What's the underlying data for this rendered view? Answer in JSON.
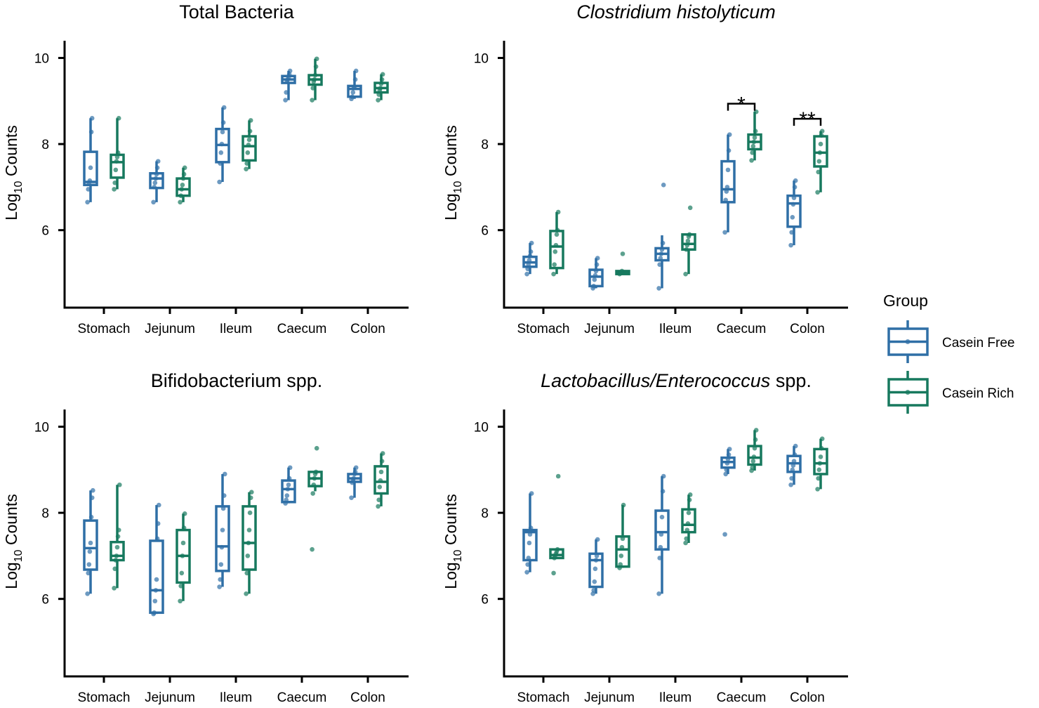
{
  "colors": {
    "casein_free": "#2f6fa6",
    "casein_rich": "#17795e"
  },
  "legend": {
    "title": "Group",
    "items": [
      {
        "label": "Casein Free",
        "color": "#2f6fa6"
      },
      {
        "label": "Casein Rich",
        "color": "#17795e"
      }
    ]
  },
  "chart_data": [
    {
      "type": "boxplot",
      "title": "Total Bacteria",
      "title_italic": false,
      "ylabel_base": "Log",
      "ylabel_sub": "10",
      "ylabel_rest": " Counts",
      "ylim": [
        4.2,
        10.4
      ],
      "yticks": [
        6,
        8,
        10
      ],
      "categories": [
        "Stomach",
        "Jejunum",
        "Ileum",
        "Caecum",
        "Colon"
      ],
      "series": [
        {
          "name": "Casein Free",
          "boxes": [
            {
              "min": 6.65,
              "q1": 7.05,
              "median": 7.12,
              "q3": 7.82,
              "max": 8.6,
              "points": [
                6.65,
                6.95,
                7.1,
                7.15,
                7.45,
                8.28,
                8.6
              ]
            },
            {
              "min": 6.65,
              "q1": 6.98,
              "median": 7.2,
              "q3": 7.32,
              "max": 7.6,
              "points": [
                6.65,
                7.0,
                7.1,
                7.2,
                7.3,
                7.45,
                7.6
              ]
            },
            {
              "min": 7.12,
              "q1": 7.58,
              "median": 7.98,
              "q3": 8.35,
              "max": 8.85,
              "points": [
                7.12,
                7.55,
                7.8,
                8.0,
                8.28,
                8.5,
                8.85
              ]
            },
            {
              "min": 9.02,
              "q1": 9.42,
              "median": 9.5,
              "q3": 9.58,
              "max": 9.7,
              "points": [
                9.02,
                9.2,
                9.45,
                9.5,
                9.55,
                9.62,
                9.7
              ]
            },
            {
              "min": 9.05,
              "q1": 9.1,
              "median": 9.28,
              "q3": 9.35,
              "max": 9.7,
              "points": [
                9.05,
                9.1,
                9.2,
                9.3,
                9.33,
                9.5,
                9.7
              ]
            }
          ]
        },
        {
          "name": "Casein Rich",
          "boxes": [
            {
              "min": 6.95,
              "q1": 7.22,
              "median": 7.58,
              "q3": 7.75,
              "max": 8.6,
              "points": [
                6.95,
                7.1,
                7.4,
                7.6,
                7.7,
                7.8,
                8.6
              ]
            },
            {
              "min": 6.65,
              "q1": 6.8,
              "median": 6.95,
              "q3": 7.2,
              "max": 7.45,
              "points": [
                6.65,
                6.8,
                6.95,
                7.05,
                7.2,
                7.3,
                7.45
              ]
            },
            {
              "min": 7.42,
              "q1": 7.62,
              "median": 7.95,
              "q3": 8.18,
              "max": 8.55,
              "points": [
                7.42,
                7.55,
                7.8,
                7.98,
                8.1,
                8.3,
                8.55
              ]
            },
            {
              "min": 9.02,
              "q1": 9.38,
              "median": 9.5,
              "q3": 9.6,
              "max": 9.98,
              "points": [
                9.02,
                9.3,
                9.45,
                9.5,
                9.6,
                9.8,
                9.98
              ]
            },
            {
              "min": 9.02,
              "q1": 9.2,
              "median": 9.3,
              "q3": 9.42,
              "max": 9.62,
              "points": [
                9.02,
                9.15,
                9.25,
                9.3,
                9.4,
                9.5,
                9.62
              ]
            }
          ]
        }
      ],
      "significance": []
    },
    {
      "type": "boxplot",
      "title": "Clostridium histolyticum",
      "title_italic": true,
      "ylabel_base": "Log",
      "ylabel_sub": "10",
      "ylabel_rest": " Counts",
      "ylim": [
        4.2,
        10.4
      ],
      "yticks": [
        6,
        8,
        10
      ],
      "categories": [
        "Stomach",
        "Jejunum",
        "Ileum",
        "Caecum",
        "Colon"
      ],
      "series": [
        {
          "name": "Casein Free",
          "boxes": [
            {
              "min": 4.98,
              "q1": 5.15,
              "median": 5.25,
              "q3": 5.38,
              "max": 5.7,
              "points": [
                4.98,
                5.1,
                5.2,
                5.3,
                5.4,
                5.5,
                5.7
              ]
            },
            {
              "min": 4.65,
              "q1": 4.7,
              "median": 4.92,
              "q3": 5.08,
              "max": 5.35,
              "points": [
                4.65,
                4.7,
                4.85,
                4.95,
                5.05,
                5.2,
                5.35
              ]
            },
            {
              "min": 4.65,
              "q1": 5.3,
              "median": 5.45,
              "q3": 5.58,
              "max": 5.88,
              "points": [
                4.65,
                5.2,
                5.35,
                5.45,
                5.55,
                5.7,
                7.05
              ]
            },
            {
              "min": 5.95,
              "q1": 6.65,
              "median": 6.95,
              "q3": 7.6,
              "max": 8.22,
              "points": [
                5.95,
                6.7,
                6.9,
                7.0,
                7.4,
                7.85,
                8.22
              ]
            },
            {
              "min": 5.65,
              "q1": 6.08,
              "median": 6.62,
              "q3": 6.8,
              "max": 7.15,
              "points": [
                5.65,
                5.95,
                6.3,
                6.6,
                6.75,
                7.0,
                7.15
              ]
            }
          ]
        },
        {
          "name": "Casein Rich",
          "boxes": [
            {
              "min": 4.98,
              "q1": 5.12,
              "median": 5.62,
              "q3": 5.98,
              "max": 6.42,
              "points": [
                4.98,
                5.2,
                5.5,
                5.65,
                5.9,
                6.0,
                6.42
              ]
            },
            {
              "min": 4.98,
              "q1": 4.98,
              "median": 5.02,
              "q3": 5.05,
              "max": 5.05,
              "points": [
                4.98,
                5.0,
                5.02,
                5.05,
                5.45
              ]
            },
            {
              "min": 4.98,
              "q1": 5.55,
              "median": 5.68,
              "q3": 5.9,
              "max": 5.9,
              "points": [
                4.98,
                5.55,
                5.65,
                5.75,
                5.85,
                5.9,
                6.52
              ]
            },
            {
              "min": 7.62,
              "q1": 7.88,
              "median": 8.05,
              "q3": 8.22,
              "max": 8.75,
              "points": [
                7.62,
                7.8,
                7.95,
                8.05,
                8.15,
                8.3,
                8.75
              ]
            },
            {
              "min": 6.88,
              "q1": 7.48,
              "median": 7.8,
              "q3": 8.18,
              "max": 8.3,
              "points": [
                6.88,
                7.35,
                7.6,
                7.8,
                8.0,
                8.2,
                8.3
              ]
            }
          ]
        }
      ],
      "significance": [
        {
          "category": "Caecum",
          "label": "*",
          "y": 8.35
        },
        {
          "category": "Colon",
          "label": "**",
          "y": 8.0
        }
      ]
    },
    {
      "type": "boxplot",
      "title": "Bifidobacterium spp.",
      "title_italic": false,
      "ylabel_base": "Log",
      "ylabel_sub": "10",
      "ylabel_rest": " Counts",
      "ylim": [
        4.2,
        10.4
      ],
      "yticks": [
        6,
        8,
        10
      ],
      "categories": [
        "Stomach",
        "Jejunum",
        "Ileum",
        "Caecum",
        "Colon"
      ],
      "series": [
        {
          "name": "Casein Free",
          "boxes": [
            {
              "min": 6.12,
              "q1": 6.68,
              "median": 7.18,
              "q3": 7.82,
              "max": 8.52,
              "points": [
                6.12,
                6.6,
                6.8,
                7.1,
                7.3,
                7.9,
                8.35,
                8.52
              ]
            },
            {
              "min": 5.65,
              "q1": 5.68,
              "median": 6.2,
              "q3": 7.35,
              "max": 8.18,
              "points": [
                5.65,
                5.68,
                5.95,
                6.2,
                6.45,
                7.4,
                7.75,
                8.18
              ]
            },
            {
              "min": 6.28,
              "q1": 6.65,
              "median": 7.22,
              "q3": 8.15,
              "max": 8.9,
              "points": [
                6.28,
                6.45,
                6.8,
                7.2,
                7.6,
                8.1,
                8.4,
                8.9
              ]
            },
            {
              "min": 8.22,
              "q1": 8.25,
              "median": 8.55,
              "q3": 8.75,
              "max": 9.05,
              "points": [
                8.22,
                8.3,
                8.4,
                8.55,
                8.65,
                8.8,
                9.05
              ]
            },
            {
              "min": 8.35,
              "q1": 8.72,
              "median": 8.8,
              "q3": 8.9,
              "max": 9.05,
              "points": [
                8.35,
                8.7,
                8.75,
                8.8,
                8.9,
                8.95,
                9.05
              ]
            }
          ]
        },
        {
          "name": "Casein Rich",
          "boxes": [
            {
              "min": 6.25,
              "q1": 6.9,
              "median": 7.0,
              "q3": 7.32,
              "max": 8.65,
              "points": [
                6.25,
                6.7,
                6.9,
                7.0,
                7.2,
                7.45,
                7.6,
                8.65
              ]
            },
            {
              "min": 5.95,
              "q1": 6.38,
              "median": 7.0,
              "q3": 7.6,
              "max": 7.98,
              "points": [
                5.95,
                6.3,
                6.6,
                7.0,
                7.3,
                7.65,
                7.98
              ]
            },
            {
              "min": 6.12,
              "q1": 6.68,
              "median": 7.3,
              "q3": 8.15,
              "max": 8.48,
              "points": [
                6.12,
                6.6,
                7.0,
                7.3,
                7.6,
                8.0,
                8.35,
                8.48
              ]
            },
            {
              "min": 8.5,
              "q1": 8.62,
              "median": 8.8,
              "q3": 8.95,
              "max": 8.95,
              "points": [
                7.15,
                8.45,
                8.65,
                8.8,
                8.9,
                8.95,
                9.5
              ]
            },
            {
              "min": 8.15,
              "q1": 8.45,
              "median": 8.72,
              "q3": 9.08,
              "max": 9.38,
              "points": [
                8.15,
                8.3,
                8.6,
                8.75,
                8.95,
                9.2,
                9.38
              ]
            }
          ]
        }
      ],
      "significance": []
    },
    {
      "type": "boxplot",
      "title": "Lactobacillus/Enterococcus",
      "title_italic": true,
      "title_suffix": " spp.",
      "ylabel_base": "Log",
      "ylabel_sub": "10",
      "ylabel_rest": " Counts",
      "ylim": [
        4.2,
        10.4
      ],
      "yticks": [
        6,
        8,
        10
      ],
      "categories": [
        "Stomach",
        "Jejunum",
        "Ileum",
        "Caecum",
        "Colon"
      ],
      "series": [
        {
          "name": "Casein Free",
          "boxes": [
            {
              "min": 6.62,
              "q1": 6.9,
              "median": 7.55,
              "q3": 7.6,
              "max": 8.45,
              "points": [
                6.62,
                6.8,
                6.95,
                7.3,
                7.5,
                7.65,
                8.45
              ]
            },
            {
              "min": 6.12,
              "q1": 6.28,
              "median": 6.9,
              "q3": 7.05,
              "max": 7.38,
              "points": [
                6.12,
                6.2,
                6.4,
                6.7,
                6.9,
                7.0,
                7.38
              ]
            },
            {
              "min": 6.12,
              "q1": 7.15,
              "median": 7.55,
              "q3": 8.05,
              "max": 8.85,
              "points": [
                6.12,
                6.95,
                7.2,
                7.5,
                7.9,
                8.5,
                8.85
              ]
            },
            {
              "min": 8.9,
              "q1": 9.05,
              "median": 9.18,
              "q3": 9.28,
              "max": 9.48,
              "points": [
                7.5,
                8.9,
                9.0,
                9.15,
                9.25,
                9.35,
                9.48
              ]
            },
            {
              "min": 8.65,
              "q1": 8.95,
              "median": 9.15,
              "q3": 9.32,
              "max": 9.55,
              "points": [
                8.65,
                8.8,
                9.0,
                9.1,
                9.2,
                9.35,
                9.55
              ]
            }
          ]
        },
        {
          "name": "Casein Rich",
          "boxes": [
            {
              "min": 6.95,
              "q1": 6.95,
              "median": 7.02,
              "q3": 7.15,
              "max": 7.15,
              "points": [
                6.6,
                6.95,
                7.0,
                7.05,
                7.1,
                7.15,
                8.85
              ]
            },
            {
              "min": 6.72,
              "q1": 6.75,
              "median": 7.15,
              "q3": 7.45,
              "max": 8.18,
              "points": [
                6.72,
                6.8,
                7.0,
                7.2,
                7.4,
                8.18
              ]
            },
            {
              "min": 7.3,
              "q1": 7.55,
              "median": 7.72,
              "q3": 8.08,
              "max": 8.42,
              "points": [
                7.3,
                7.4,
                7.6,
                7.75,
                8.0,
                8.3,
                8.42
              ]
            },
            {
              "min": 8.98,
              "q1": 9.12,
              "median": 9.28,
              "q3": 9.55,
              "max": 9.92,
              "points": [
                8.98,
                9.05,
                9.2,
                9.3,
                9.5,
                9.7,
                9.92
              ]
            },
            {
              "min": 8.55,
              "q1": 8.9,
              "median": 9.15,
              "q3": 9.48,
              "max": 9.72,
              "points": [
                8.55,
                8.8,
                9.0,
                9.15,
                9.3,
                9.5,
                9.72
              ]
            }
          ]
        }
      ],
      "significance": []
    }
  ]
}
